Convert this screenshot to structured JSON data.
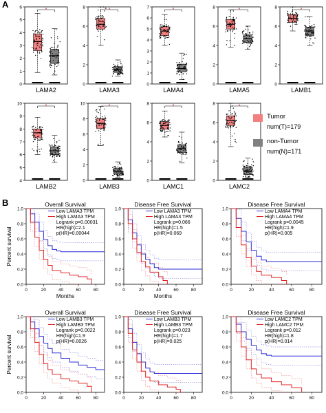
{
  "panel_labels": {
    "a": "A",
    "b": "B"
  },
  "legend": {
    "tumor": {
      "label": "Tumor",
      "count": "num(T)=179",
      "color": "#f28080"
    },
    "normal": {
      "label": "non-Tumor",
      "count": "num(N)=171",
      "color": "#808080"
    }
  },
  "significance_mark": "*",
  "chart_data": [
    {
      "type": "box",
      "gene": "LAMA2",
      "xlabel": "LAMA2",
      "ylim": [
        0,
        6
      ],
      "yticks": [
        0,
        1,
        2,
        3,
        4,
        5,
        6
      ],
      "tumor": {
        "min": 0.9,
        "q1": 2.6,
        "median": 3.3,
        "q3": 3.9,
        "max": 5.5
      },
      "normal": {
        "min": 0.7,
        "q1": 1.6,
        "median": 2.2,
        "q3": 2.7,
        "max": 4.3
      }
    },
    {
      "type": "box",
      "gene": "LAMA3",
      "xlabel": "LAMA3",
      "ylim": [
        0,
        8
      ],
      "yticks": [
        0,
        2,
        4,
        6,
        8
      ],
      "tumor": {
        "min": 4.0,
        "q1": 5.7,
        "median": 6.2,
        "q3": 6.8,
        "max": 8.0
      },
      "normal": {
        "min": 0.8,
        "q1": 1.2,
        "median": 1.5,
        "q3": 1.8,
        "max": 2.5
      }
    },
    {
      "type": "box",
      "gene": "LAMA4",
      "xlabel": "LAMA4",
      "ylim": [
        0,
        7
      ],
      "yticks": [
        0,
        1,
        2,
        3,
        4,
        5,
        6,
        7
      ],
      "tumor": {
        "min": 3.5,
        "q1": 4.4,
        "median": 4.8,
        "q3": 5.2,
        "max": 6.3
      },
      "normal": {
        "min": 0.4,
        "q1": 1.1,
        "median": 1.4,
        "q3": 1.8,
        "max": 2.8
      }
    },
    {
      "type": "box",
      "gene": "LAMA5",
      "xlabel": "LAMA5",
      "ylim": [
        0,
        8
      ],
      "yticks": [
        0,
        2,
        4,
        6,
        8
      ],
      "tumor": {
        "min": 3.8,
        "q1": 5.7,
        "median": 6.2,
        "q3": 6.7,
        "max": 7.7
      },
      "normal": {
        "min": 3.6,
        "q1": 4.3,
        "median": 4.7,
        "q3": 5.1,
        "max": 6.0
      }
    },
    {
      "type": "box",
      "gene": "LAMB1",
      "xlabel": "LAMB1",
      "ylim": [
        0,
        8
      ],
      "yticks": [
        0,
        2,
        4,
        6,
        8
      ],
      "tumor": {
        "min": 5.5,
        "q1": 6.4,
        "median": 6.8,
        "q3": 7.2,
        "max": 8.0
      },
      "normal": {
        "min": 4.0,
        "q1": 5.0,
        "median": 5.5,
        "q3": 5.9,
        "max": 7.0
      }
    },
    {
      "type": "box",
      "gene": "LAMB2",
      "xlabel": "LAMB2",
      "ylim": [
        4,
        10
      ],
      "yticks": [
        4,
        5,
        6,
        7,
        8,
        9,
        10
      ],
      "tumor": {
        "min": 6.0,
        "q1": 7.3,
        "median": 7.7,
        "q3": 8.0,
        "max": 8.9
      },
      "normal": {
        "min": 5.4,
        "q1": 6.0,
        "median": 6.3,
        "q3": 6.6,
        "max": 7.5
      }
    },
    {
      "type": "box",
      "gene": "LAMB3",
      "xlabel": "LAMB3",
      "ylim": [
        0,
        10
      ],
      "yticks": [
        0,
        2,
        4,
        6,
        8,
        10
      ],
      "tumor": {
        "min": 4.5,
        "q1": 6.7,
        "median": 7.4,
        "q3": 8.0,
        "max": 9.6
      },
      "normal": {
        "min": 0.4,
        "q1": 0.8,
        "median": 1.1,
        "q3": 1.6,
        "max": 2.4
      }
    },
    {
      "type": "box",
      "gene": "LAMC1",
      "xlabel": "LAMC1",
      "ylim": [
        0,
        8
      ],
      "yticks": [
        0,
        2,
        4,
        6,
        8
      ],
      "tumor": {
        "min": 4.5,
        "q1": 5.3,
        "median": 5.7,
        "q3": 6.1,
        "max": 7.2
      },
      "normal": {
        "min": 1.8,
        "q1": 2.9,
        "median": 3.3,
        "q3": 3.7,
        "max": 5.0
      }
    },
    {
      "type": "box",
      "gene": "LAMC2",
      "xlabel": "LAMC2",
      "ylim": [
        0,
        8
      ],
      "yticks": [
        0,
        2,
        4,
        6,
        8
      ],
      "tumor": {
        "min": 3.5,
        "q1": 5.7,
        "median": 6.2,
        "q3": 6.7,
        "max": 8.0
      },
      "normal": {
        "min": 0.3,
        "q1": 0.6,
        "median": 0.9,
        "q3": 1.4,
        "max": 2.3
      }
    },
    {
      "type": "line",
      "title": "Overall Survival",
      "xlabel": "Months",
      "ylabel": "Percent survival",
      "xlim": [
        0,
        90
      ],
      "xticks": [
        0,
        20,
        40,
        60,
        80
      ],
      "ylim": [
        0,
        1.0
      ],
      "yticks": [
        0.0,
        0.2,
        0.4,
        0.6,
        0.8,
        1.0
      ],
      "legend": [
        "Low LAMA3 TPM",
        "High LAMA3 TPM"
      ],
      "stats": [
        "Logrank p=0.00031",
        "HR(high)=2.1",
        "p(HR)=0.00044"
      ],
      "series": [
        {
          "name": "Low LAMA3 TPM",
          "color": "#2b2bd6",
          "x": [
            0,
            5,
            10,
            15,
            20,
            25,
            30,
            35,
            40,
            45,
            90
          ],
          "y": [
            1.0,
            0.93,
            0.82,
            0.7,
            0.59,
            0.51,
            0.46,
            0.44,
            0.43,
            0.43,
            0.43
          ]
        },
        {
          "name": "High LAMA3 TPM",
          "color": "#e02020",
          "x": [
            0,
            5,
            10,
            15,
            20,
            25,
            30,
            40,
            50,
            60,
            70,
            75
          ],
          "y": [
            1.0,
            0.82,
            0.62,
            0.45,
            0.33,
            0.25,
            0.18,
            0.15,
            0.12,
            0.1,
            0.07,
            0.0
          ]
        }
      ]
    },
    {
      "type": "line",
      "title": "Disease Free Survival",
      "xlabel": "Months",
      "ylabel": "",
      "xlim": [
        0,
        90
      ],
      "xticks": [
        0,
        20,
        40,
        60,
        80
      ],
      "ylim": [
        0,
        1.0
      ],
      "yticks": [
        0.0,
        0.2,
        0.4,
        0.6,
        0.8,
        1.0
      ],
      "legend": [
        "Low LAMA3 TPM",
        "High LAMA3 TPM"
      ],
      "stats": [
        "Logrank p=0.066",
        "HR(high)=1.5",
        "p(HR)=0.069"
      ],
      "series": [
        {
          "name": "Low LAMA3 TPM",
          "color": "#2b2bd6",
          "x": [
            0,
            5,
            10,
            15,
            20,
            25,
            30,
            35,
            40,
            50,
            90
          ],
          "y": [
            1.0,
            0.85,
            0.68,
            0.52,
            0.4,
            0.33,
            0.27,
            0.22,
            0.2,
            0.2,
            0.2
          ]
        },
        {
          "name": "High LAMA3 TPM",
          "color": "#e02020",
          "x": [
            0,
            5,
            10,
            15,
            20,
            25,
            30,
            40,
            45,
            50
          ],
          "y": [
            1.0,
            0.8,
            0.6,
            0.42,
            0.3,
            0.23,
            0.16,
            0.1,
            0.05,
            0.0
          ]
        }
      ]
    },
    {
      "type": "line",
      "title": "Disease Free Survival",
      "xlabel": "",
      "ylabel": "",
      "xlim": [
        0,
        90
      ],
      "xticks": [
        0,
        20,
        40,
        60,
        80
      ],
      "ylim": [
        0,
        1.0
      ],
      "yticks": [
        0.0,
        0.2,
        0.4,
        0.6,
        0.8,
        1.0
      ],
      "legend": [
        "Low LAMA4 TPM",
        "High LAMA4 TPM"
      ],
      "stats": [
        "Logrank p=0.0045",
        "HR(high)=1.9",
        "p(HR)=0.005"
      ],
      "series": [
        {
          "name": "Low LAMA4 TPM",
          "color": "#2b2bd6",
          "x": [
            0,
            5,
            10,
            15,
            20,
            25,
            30,
            35,
            90
          ],
          "y": [
            1.0,
            0.87,
            0.7,
            0.56,
            0.45,
            0.37,
            0.32,
            0.3,
            0.3
          ]
        },
        {
          "name": "High LAMA4 TPM",
          "color": "#e02020",
          "x": [
            0,
            5,
            10,
            15,
            20,
            25,
            30,
            40,
            50,
            55
          ],
          "y": [
            1.0,
            0.75,
            0.52,
            0.35,
            0.24,
            0.17,
            0.12,
            0.09,
            0.05,
            0.0
          ]
        }
      ]
    },
    {
      "type": "line",
      "title": "Overall Survival",
      "xlabel": "",
      "ylabel": "Percent survival",
      "xlim": [
        0,
        90
      ],
      "xticks": [
        0,
        20,
        40,
        60,
        80
      ],
      "ylim": [
        0,
        1.0
      ],
      "yticks": [
        0.0,
        0.2,
        0.4,
        0.6,
        0.8,
        1.0
      ],
      "legend": [
        "Low LAMB3 TPM",
        "High LAMB3 TPM"
      ],
      "stats": [
        "Logrank p=0.0022",
        "HR(high)=1.9",
        "p(HR)=0.0026"
      ],
      "series": [
        {
          "name": "Low LAMB3 TPM",
          "color": "#2b2bd6",
          "x": [
            0,
            5,
            10,
            15,
            20,
            25,
            30,
            40,
            50,
            60,
            70,
            80,
            90
          ],
          "y": [
            1.0,
            0.93,
            0.84,
            0.74,
            0.65,
            0.58,
            0.52,
            0.45,
            0.4,
            0.36,
            0.33,
            0.3,
            0.3
          ]
        },
        {
          "name": "High LAMB3 TPM",
          "color": "#e02020",
          "x": [
            0,
            5,
            10,
            15,
            20,
            25,
            30,
            40,
            50,
            60,
            70,
            75
          ],
          "y": [
            1.0,
            0.84,
            0.66,
            0.5,
            0.38,
            0.3,
            0.24,
            0.18,
            0.15,
            0.12,
            0.08,
            0.0
          ]
        }
      ]
    },
    {
      "type": "line",
      "title": "Disease Free Survival",
      "xlabel": "",
      "ylabel": "",
      "xlim": [
        0,
        90
      ],
      "xticks": [
        0,
        20,
        40,
        60,
        80
      ],
      "ylim": [
        0,
        1.0
      ],
      "yticks": [
        0.0,
        0.2,
        0.4,
        0.6,
        0.8,
        1.0
      ],
      "legend": [
        "Low LAMB3 TPM",
        "High LAMB3 TPM"
      ],
      "stats": [
        "Logrank p=0.023",
        "HR(high)=1.7",
        "p(HR)=0.025"
      ],
      "series": [
        {
          "name": "Low LAMB3 TPM",
          "color": "#2b2bd6",
          "x": [
            0,
            5,
            10,
            15,
            20,
            25,
            30,
            35,
            90
          ],
          "y": [
            1.0,
            0.84,
            0.66,
            0.51,
            0.4,
            0.32,
            0.27,
            0.25,
            0.25
          ]
        },
        {
          "name": "High LAMB3 TPM",
          "color": "#e02020",
          "x": [
            0,
            5,
            10,
            15,
            20,
            25,
            30,
            40,
            50,
            60,
            65
          ],
          "y": [
            1.0,
            0.78,
            0.56,
            0.4,
            0.28,
            0.2,
            0.15,
            0.1,
            0.07,
            0.04,
            0.0
          ]
        }
      ]
    },
    {
      "type": "line",
      "title": "Disease Free Survival",
      "xlabel": "",
      "ylabel": "",
      "xlim": [
        0,
        90
      ],
      "xticks": [
        0,
        20,
        40,
        60,
        80
      ],
      "ylim": [
        0,
        1.0
      ],
      "yticks": [
        0.0,
        0.2,
        0.4,
        0.6,
        0.8,
        1.0
      ],
      "legend": [
        "Low LAMC2 TPM",
        "High LAMC2 TPM"
      ],
      "stats": [
        "Logrank p=0.012",
        "HR(high)=1.8",
        "p(HR)=0.014"
      ],
      "series": [
        {
          "name": "Low LAMC2 TPM",
          "color": "#2b2bd6",
          "x": [
            0,
            5,
            10,
            15,
            20,
            25,
            30,
            35,
            40,
            90
          ],
          "y": [
            1.0,
            0.9,
            0.8,
            0.7,
            0.62,
            0.56,
            0.51,
            0.49,
            0.48,
            0.48
          ]
        },
        {
          "name": "High LAMC2 TPM",
          "color": "#e02020",
          "x": [
            0,
            5,
            10,
            15,
            20,
            25,
            30,
            40,
            50,
            60,
            70
          ],
          "y": [
            1.0,
            0.8,
            0.6,
            0.43,
            0.31,
            0.24,
            0.19,
            0.14,
            0.1,
            0.06,
            0.0
          ]
        }
      ]
    }
  ]
}
